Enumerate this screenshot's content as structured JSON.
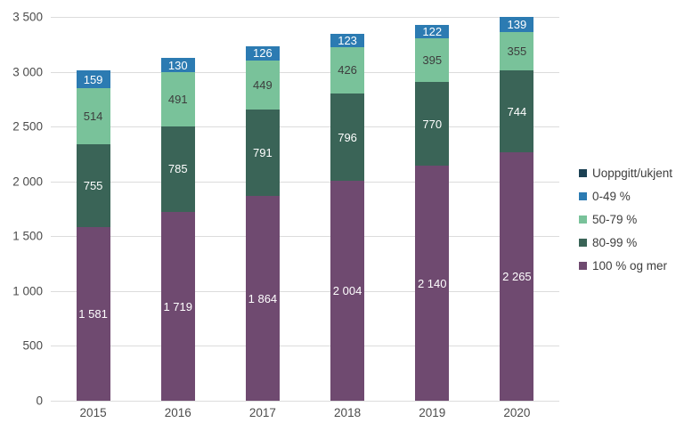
{
  "chart_data": {
    "type": "bar",
    "stacked": true,
    "title": "",
    "xlabel": "",
    "ylabel": "",
    "grid": true,
    "legend_position": "right",
    "categories": [
      "2015",
      "2016",
      "2017",
      "2018",
      "2019",
      "2020"
    ],
    "series": [
      {
        "name": "100 % og mer",
        "color": "#6f4a70",
        "label_color": "#ffffff",
        "values": [
          1581,
          1719,
          1864,
          2004,
          2140,
          2265
        ],
        "labels": [
          "1 581",
          "1 719",
          "1 864",
          "2 004",
          "2 140",
          "2 265"
        ]
      },
      {
        "name": "80-99 %",
        "color": "#3a6457",
        "label_color": "#ffffff",
        "values": [
          755,
          785,
          791,
          796,
          770,
          744
        ],
        "labels": [
          "755",
          "785",
          "791",
          "796",
          "770",
          "744"
        ]
      },
      {
        "name": "50-79 %",
        "color": "#79c29a",
        "label_color": "#3d3d3d",
        "values": [
          514,
          491,
          449,
          426,
          395,
          355
        ],
        "labels": [
          "514",
          "491",
          "449",
          "426",
          "395",
          "355"
        ]
      },
      {
        "name": "0-49 %",
        "color": "#2c7bb2",
        "label_color": "#ffffff",
        "values": [
          159,
          130,
          126,
          123,
          122,
          139
        ],
        "labels": [
          "159",
          "130",
          "126",
          "123",
          "122",
          "139"
        ]
      }
    ],
    "legend": [
      {
        "label": "Uoppgitt/ukjent",
        "color": "#1c4154"
      },
      {
        "label": "0-49 %",
        "color": "#2c7bb2"
      },
      {
        "label": "50-79 %",
        "color": "#79c29a"
      },
      {
        "label": "80-99 %",
        "color": "#3a6457"
      },
      {
        "label": "100 % og mer",
        "color": "#6f4a70"
      }
    ],
    "ylim": [
      0,
      3500
    ],
    "yticks": [
      {
        "value": 0,
        "label": "0"
      },
      {
        "value": 500,
        "label": "500"
      },
      {
        "value": 1000,
        "label": "1 000"
      },
      {
        "value": 1500,
        "label": "1 500"
      },
      {
        "value": 2000,
        "label": "2 000"
      },
      {
        "value": 2500,
        "label": "2 500"
      },
      {
        "value": 3000,
        "label": "3 000"
      },
      {
        "value": 3500,
        "label": "3 500"
      }
    ]
  },
  "colors": {
    "gridline": "#dcdcdc",
    "axis_text": "#4c4c4c",
    "background": "#ffffff"
  }
}
